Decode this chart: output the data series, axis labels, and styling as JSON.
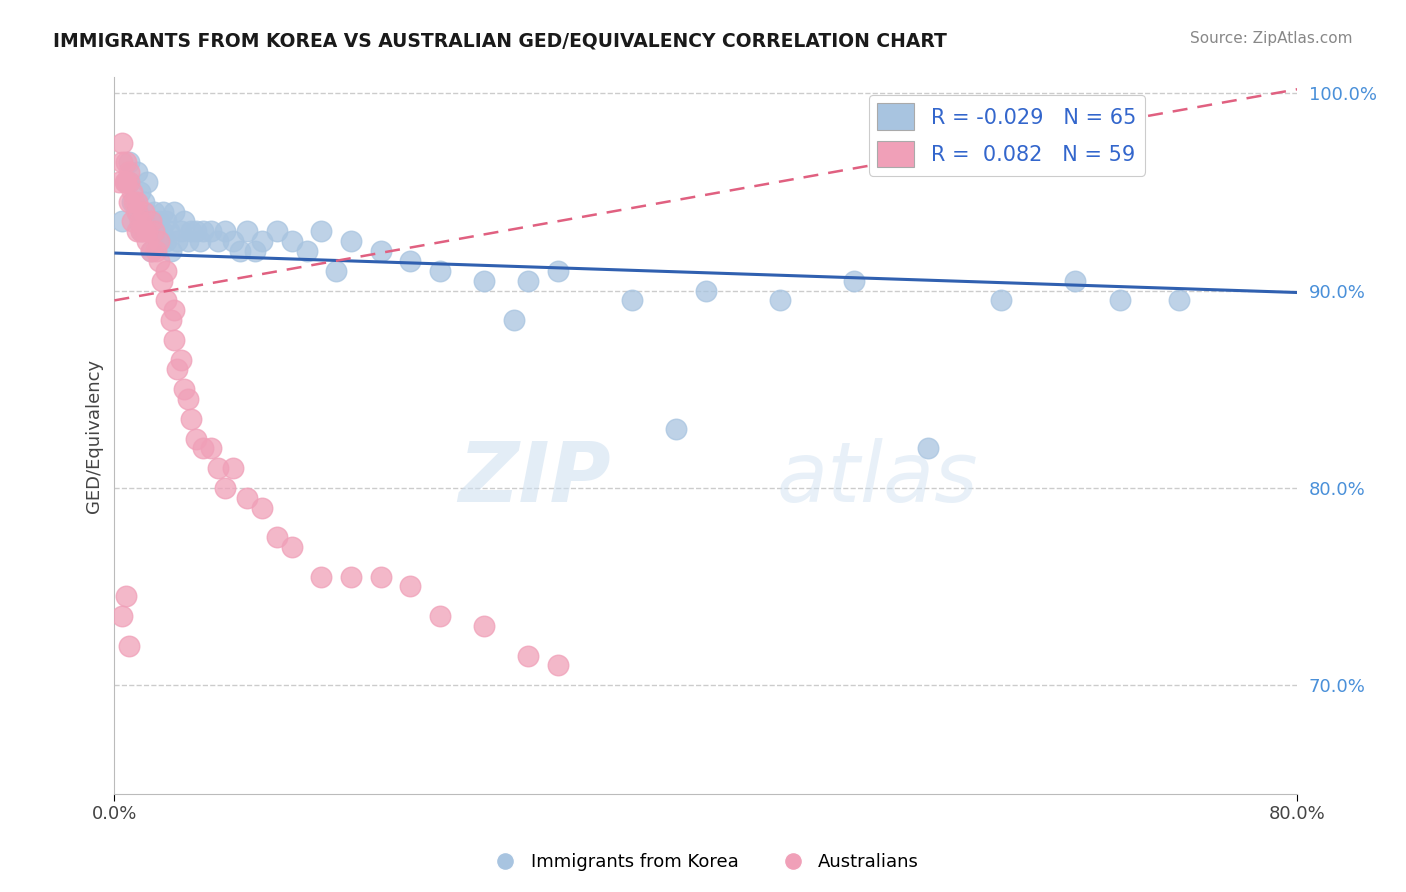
{
  "title": "IMMIGRANTS FROM KOREA VS AUSTRALIAN GED/EQUIVALENCY CORRELATION CHART",
  "source": "Source: ZipAtlas.com",
  "ylabel": "GED/Equivalency",
  "legend_labels": [
    "Immigrants from Korea",
    "Australians"
  ],
  "legend_r": [
    -0.029,
    0.082
  ],
  "legend_n": [
    65,
    59
  ],
  "blue_color": "#a8c4e0",
  "pink_color": "#f0a0b8",
  "blue_line_color": "#3060b0",
  "pink_line_color": "#e06080",
  "xlim": [
    0.0,
    0.8
  ],
  "ylim": [
    0.645,
    1.008
  ],
  "ytick_labels": [
    "70.0%",
    "80.0%",
    "90.0%",
    "100.0%"
  ],
  "ytick_vals": [
    0.7,
    0.8,
    0.9,
    1.0
  ],
  "watermark_zip": "ZIP",
  "watermark_atlas": "atlas",
  "blue_scatter_x": [
    0.005,
    0.008,
    0.01,
    0.01,
    0.012,
    0.015,
    0.015,
    0.017,
    0.018,
    0.02,
    0.02,
    0.022,
    0.022,
    0.025,
    0.025,
    0.027,
    0.028,
    0.03,
    0.03,
    0.032,
    0.033,
    0.035,
    0.035,
    0.037,
    0.038,
    0.04,
    0.042,
    0.045,
    0.047,
    0.05,
    0.052,
    0.055,
    0.058,
    0.06,
    0.065,
    0.07,
    0.075,
    0.08,
    0.085,
    0.09,
    0.095,
    0.1,
    0.11,
    0.12,
    0.13,
    0.14,
    0.15,
    0.16,
    0.18,
    0.2,
    0.22,
    0.25,
    0.28,
    0.3,
    0.35,
    0.4,
    0.45,
    0.5,
    0.55,
    0.6,
    0.65,
    0.68,
    0.72,
    0.38,
    0.27
  ],
  "blue_scatter_y": [
    0.935,
    0.955,
    0.955,
    0.965,
    0.945,
    0.94,
    0.96,
    0.95,
    0.93,
    0.935,
    0.945,
    0.93,
    0.955,
    0.935,
    0.92,
    0.94,
    0.93,
    0.935,
    0.925,
    0.93,
    0.94,
    0.925,
    0.935,
    0.93,
    0.92,
    0.94,
    0.925,
    0.93,
    0.935,
    0.925,
    0.93,
    0.93,
    0.925,
    0.93,
    0.93,
    0.925,
    0.93,
    0.925,
    0.92,
    0.93,
    0.92,
    0.925,
    0.93,
    0.925,
    0.92,
    0.93,
    0.91,
    0.925,
    0.92,
    0.915,
    0.91,
    0.905,
    0.905,
    0.91,
    0.895,
    0.9,
    0.895,
    0.905,
    0.82,
    0.895,
    0.905,
    0.895,
    0.895,
    0.83,
    0.885
  ],
  "pink_scatter_x": [
    0.003,
    0.005,
    0.005,
    0.007,
    0.008,
    0.008,
    0.01,
    0.01,
    0.01,
    0.012,
    0.012,
    0.013,
    0.015,
    0.015,
    0.015,
    0.017,
    0.018,
    0.02,
    0.02,
    0.022,
    0.022,
    0.025,
    0.025,
    0.027,
    0.028,
    0.03,
    0.03,
    0.032,
    0.035,
    0.035,
    0.038,
    0.04,
    0.04,
    0.042,
    0.045,
    0.047,
    0.05,
    0.052,
    0.055,
    0.06,
    0.065,
    0.07,
    0.075,
    0.08,
    0.09,
    0.1,
    0.11,
    0.12,
    0.14,
    0.16,
    0.18,
    0.2,
    0.22,
    0.25,
    0.28,
    0.3,
    0.005,
    0.008,
    0.01
  ],
  "pink_scatter_y": [
    0.955,
    0.965,
    0.975,
    0.955,
    0.965,
    0.955,
    0.955,
    0.96,
    0.945,
    0.95,
    0.935,
    0.945,
    0.94,
    0.93,
    0.945,
    0.935,
    0.93,
    0.93,
    0.94,
    0.93,
    0.925,
    0.935,
    0.92,
    0.93,
    0.92,
    0.915,
    0.925,
    0.905,
    0.91,
    0.895,
    0.885,
    0.875,
    0.89,
    0.86,
    0.865,
    0.85,
    0.845,
    0.835,
    0.825,
    0.82,
    0.82,
    0.81,
    0.8,
    0.81,
    0.795,
    0.79,
    0.775,
    0.77,
    0.755,
    0.755,
    0.755,
    0.75,
    0.735,
    0.73,
    0.715,
    0.71,
    0.735,
    0.745,
    0.72
  ],
  "blue_line_x": [
    0.0,
    0.8
  ],
  "blue_line_y": [
    0.919,
    0.899
  ],
  "pink_line_x": [
    0.0,
    0.8
  ],
  "pink_line_y": [
    0.895,
    1.002
  ]
}
